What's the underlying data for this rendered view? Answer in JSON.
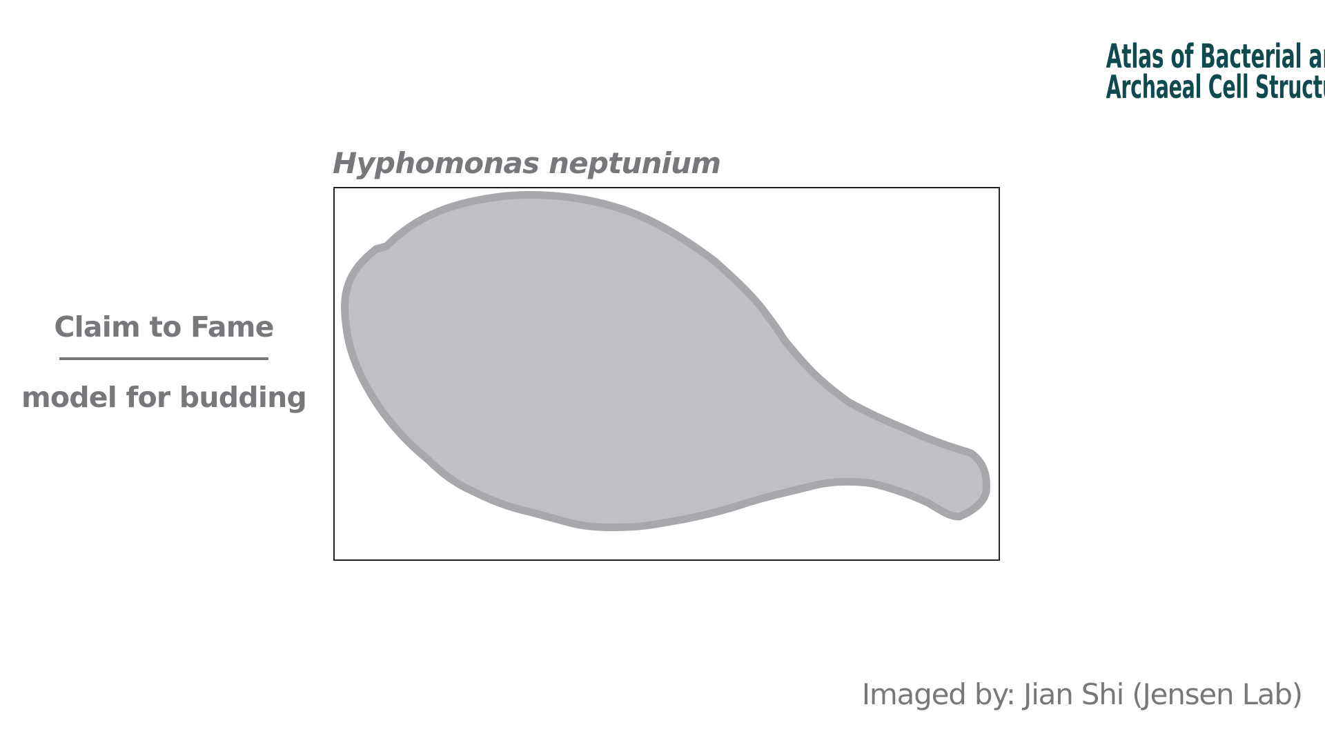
{
  "logo": {
    "line1": "Atlas of Bacterial and",
    "line2": "Archaeal Cell Structure"
  },
  "organism": {
    "name": "Hyphomonas neptunium"
  },
  "claim": {
    "heading": "Claim to Fame",
    "text": "model for budding"
  },
  "credit": {
    "text": "Imaged by: Jian Shi (Jensen Lab)"
  },
  "colors": {
    "label_gray": "#77787b",
    "logo_teal": "#0f4a4f",
    "cell_fill": "#bfc0c3",
    "cell_outline": "#a7a8ab",
    "frame": "#231f20"
  }
}
